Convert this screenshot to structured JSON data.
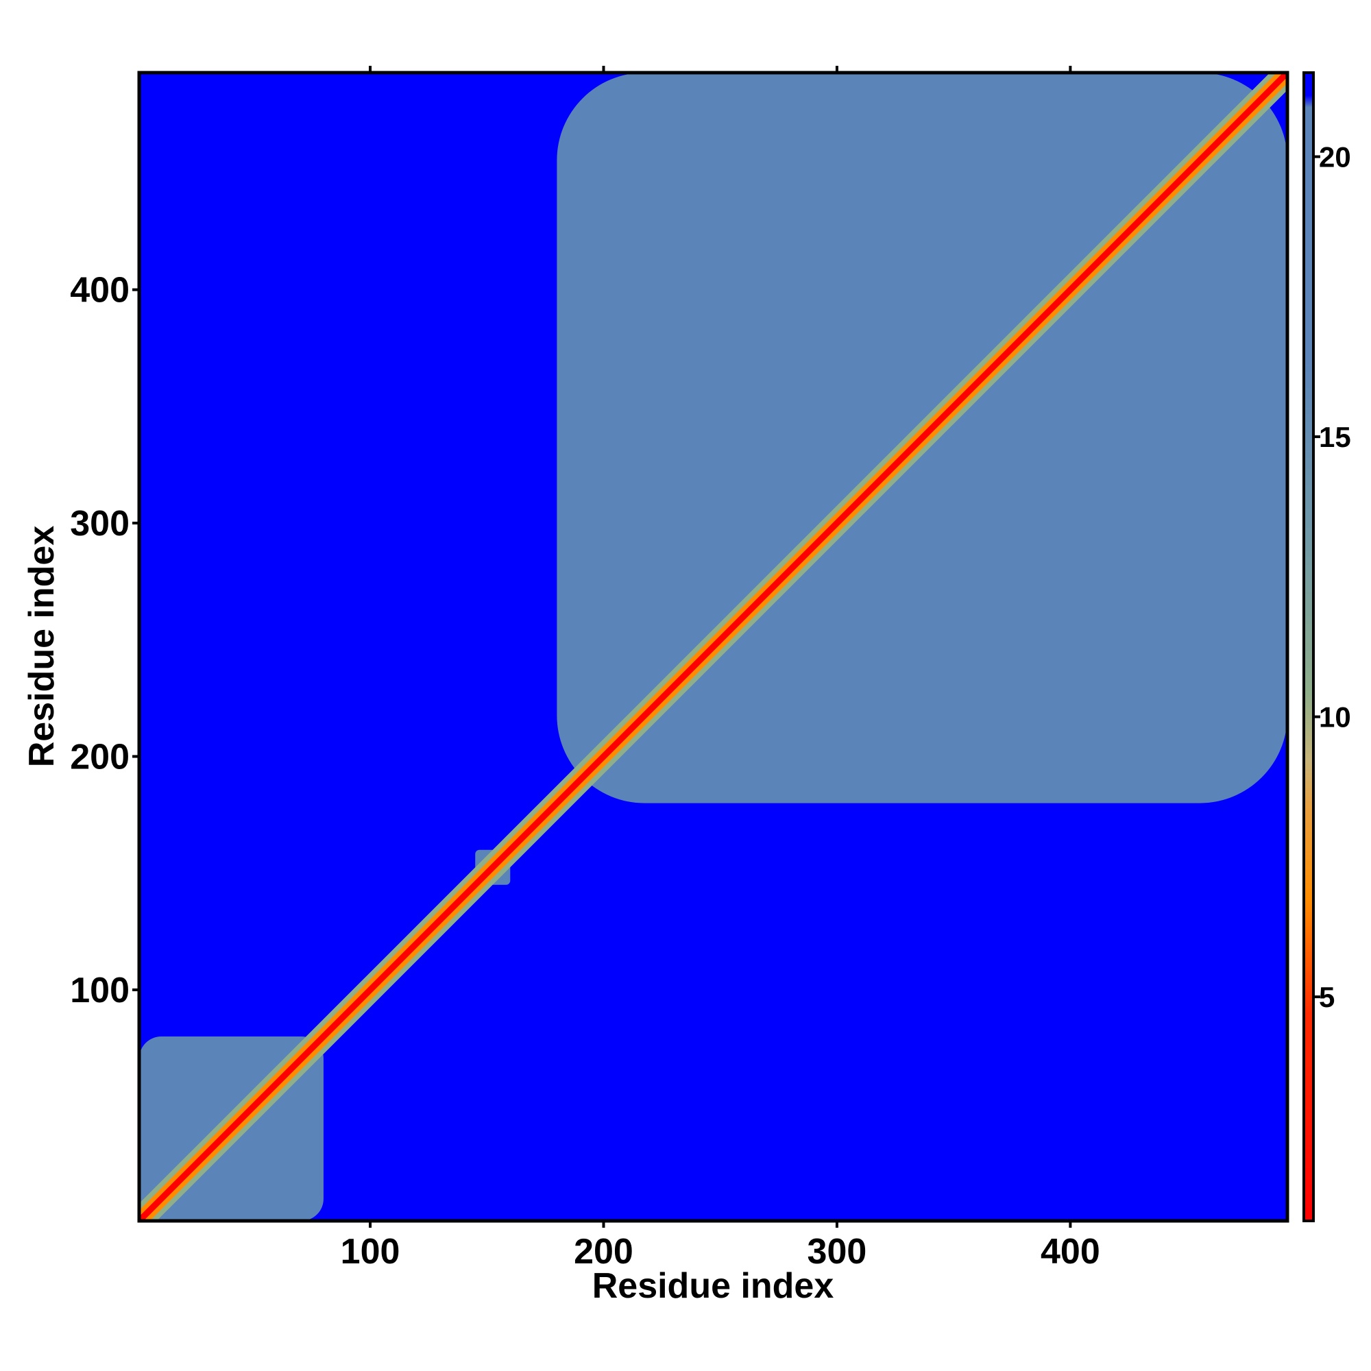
{
  "chart_data": {
    "type": "heatmap",
    "title": "",
    "xlabel": "Residue index",
    "ylabel": "Residue index",
    "xlim": [
      1,
      493
    ],
    "ylim": [
      1,
      493
    ],
    "x_ticks": [
      100,
      200,
      300,
      400
    ],
    "y_ticks": [
      100,
      200,
      300,
      400
    ],
    "colorbar": {
      "range": [
        1,
        21.5
      ],
      "ticks": [
        5,
        10,
        15,
        20
      ],
      "colors": {
        "low": "#ff0000",
        "mid_low": "#ff8c00",
        "mid": "#e0c060",
        "mid_high": "#8fae8a",
        "high": "#5b84b8",
        "max": "#0000ff"
      }
    },
    "domains": [
      {
        "start": 1,
        "end": 80
      },
      {
        "start": 145,
        "end": 160
      },
      {
        "start": 180,
        "end": 493
      }
    ],
    "diagonal_color": "#ff0000",
    "background_color": "#0000ff",
    "domain_color": "#5b84b8"
  }
}
